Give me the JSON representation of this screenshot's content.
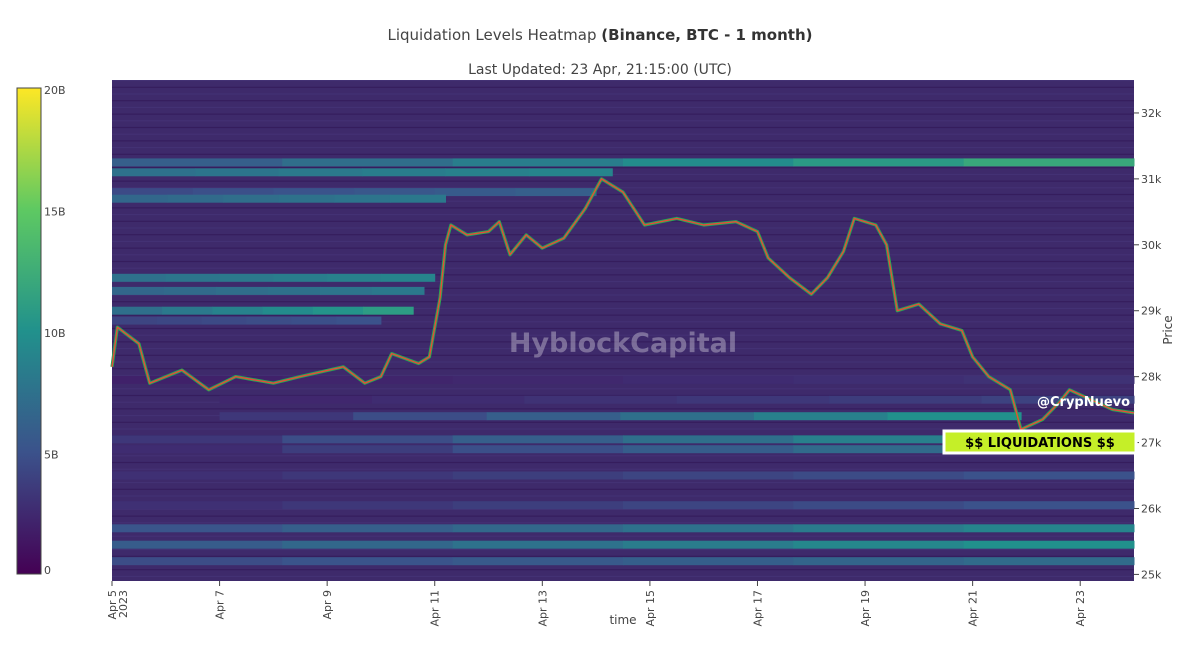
{
  "title_main": "Liquidation Levels Heatmap ",
  "title_bold": "(Binance, BTC - 1 month)",
  "subtitle": "Last Updated: 23 Apr, 21:15:00 (UTC)",
  "watermark": "HyblockCapital",
  "handle": "@CrypNuevo",
  "callout": "$$ LIQUIDATIONS $$",
  "chart_data": {
    "type": "heatmap",
    "xlabel": "time",
    "ylabel": "Price",
    "x_range": [
      "2023-04-05",
      "2023-04-24"
    ],
    "y_range": [
      24900,
      32500
    ],
    "x_ticks": [
      {
        "date": "2023-04-05",
        "label": "Apr 5",
        "label2": "2023"
      },
      {
        "date": "2023-04-07",
        "label": "Apr 7"
      },
      {
        "date": "2023-04-09",
        "label": "Apr 9"
      },
      {
        "date": "2023-04-11",
        "label": "Apr 11"
      },
      {
        "date": "2023-04-13",
        "label": "Apr 13"
      },
      {
        "date": "2023-04-15",
        "label": "Apr 15"
      },
      {
        "date": "2023-04-17",
        "label": "Apr 17"
      },
      {
        "date": "2023-04-19",
        "label": "Apr 19"
      },
      {
        "date": "2023-04-21",
        "label": "Apr 21"
      },
      {
        "date": "2023-04-23",
        "label": "Apr 23"
      }
    ],
    "y_ticks": [
      {
        "value": 25000,
        "label": "25k"
      },
      {
        "value": 26000,
        "label": "26k"
      },
      {
        "value": 27000,
        "label": "27k"
      },
      {
        "value": 28000,
        "label": "28k"
      },
      {
        "value": 29000,
        "label": "29k"
      },
      {
        "value": 30000,
        "label": "30k"
      },
      {
        "value": 31000,
        "label": "31k"
      },
      {
        "value": 32000,
        "label": "32k"
      }
    ],
    "colorbar": {
      "range": [
        0,
        20
      ],
      "unit": "B",
      "ticks": [
        {
          "value": 0,
          "label": "0"
        },
        {
          "value": 5,
          "label": "5B"
        },
        {
          "value": 10,
          "label": "10B"
        },
        {
          "value": 15,
          "label": "15B"
        },
        {
          "value": 20,
          "label": "20B"
        }
      ],
      "colors": [
        "#440154",
        "#3b528b",
        "#21918c",
        "#5ec962",
        "#fde725"
      ]
    },
    "bands": [
      {
        "price": 31250,
        "level": 12,
        "start": "2023-04-05",
        "end": "2023-04-24",
        "growth": 0.6
      },
      {
        "price": 31100,
        "level": 9,
        "start": "2023-04-05",
        "end": "2023-04-14.3",
        "growth": 0.2
      },
      {
        "price": 30800,
        "level": 6,
        "start": "2023-04-05",
        "end": "2023-04-14",
        "growth": 0.3
      },
      {
        "price": 30700,
        "level": 8,
        "start": "2023-04-05",
        "end": "2023-04-11.2",
        "growth": 0.2
      },
      {
        "price": 29500,
        "level": 9,
        "start": "2023-04-05",
        "end": "2023-04-11",
        "growth": 0.2
      },
      {
        "price": 29300,
        "level": 8,
        "start": "2023-04-05",
        "end": "2023-04-10.8",
        "growth": 0.2
      },
      {
        "price": 29000,
        "level": 11,
        "start": "2023-04-05",
        "end": "2023-04-10.6",
        "growth": 0.4
      },
      {
        "price": 28850,
        "level": 5,
        "start": "2023-04-05",
        "end": "2023-04-10",
        "growth": 0.2
      },
      {
        "price": 27950,
        "level": 3,
        "start": "2023-04-05",
        "end": "2023-04-24",
        "growth": 0.4
      },
      {
        "price": 27650,
        "level": 4,
        "start": "2023-04-07",
        "end": "2023-04-24",
        "growth": 0.5
      },
      {
        "price": 27400,
        "level": 10,
        "start": "2023-04-07",
        "end": "2023-04-21.9",
        "growth": 0.8
      },
      {
        "price": 27050,
        "level": 10,
        "start": "2023-04-05",
        "end": "2023-04-24",
        "growth": 0.8
      },
      {
        "price": 26900,
        "level": 8,
        "start": "2023-04-05",
        "end": "2023-04-24",
        "growth": 0.8
      },
      {
        "price": 26500,
        "level": 5,
        "start": "2023-04-05",
        "end": "2023-04-24",
        "growth": 0.5
      },
      {
        "price": 26050,
        "level": 5,
        "start": "2023-04-05",
        "end": "2023-04-24",
        "growth": 0.5
      },
      {
        "price": 25700,
        "level": 9,
        "start": "2023-04-05",
        "end": "2023-04-24",
        "growth": 0.5
      },
      {
        "price": 25450,
        "level": 10,
        "start": "2023-04-05",
        "end": "2023-04-24",
        "growth": 0.5
      },
      {
        "price": 25200,
        "level": 7,
        "start": "2023-04-05",
        "end": "2023-04-24",
        "growth": 0.4
      }
    ],
    "price_path": [
      [
        "2023-04-05",
        28150
      ],
      [
        "2023-04-05.1",
        28750
      ],
      [
        "2023-04-05.5",
        28500
      ],
      [
        "2023-04-05.7",
        27900
      ],
      [
        "2023-04-06.3",
        28100
      ],
      [
        "2023-04-06.8",
        27800
      ],
      [
        "2023-04-07.3",
        28000
      ],
      [
        "2023-04-08",
        27900
      ],
      [
        "2023-04-08.5",
        28000
      ],
      [
        "2023-04-09.3",
        28150
      ],
      [
        "2023-04-09.7",
        27900
      ],
      [
        "2023-04-10",
        28000
      ],
      [
        "2023-04-10.2",
        28350
      ],
      [
        "2023-04-10.7",
        28200
      ],
      [
        "2023-04-10.9",
        28300
      ],
      [
        "2023-04-11.1",
        29200
      ],
      [
        "2023-04-11.2",
        30000
      ],
      [
        "2023-04-11.3",
        30300
      ],
      [
        "2023-04-11.6",
        30150
      ],
      [
        "2023-04-12",
        30200
      ],
      [
        "2023-04-12.2",
        30350
      ],
      [
        "2023-04-12.4",
        29850
      ],
      [
        "2023-04-12.7",
        30150
      ],
      [
        "2023-04-13",
        29950
      ],
      [
        "2023-04-13.4",
        30100
      ],
      [
        "2023-04-13.8",
        30550
      ],
      [
        "2023-04-14.1",
        31000
      ],
      [
        "2023-04-14.5",
        30800
      ],
      [
        "2023-04-14.9",
        30300
      ],
      [
        "2023-04-15.5",
        30400
      ],
      [
        "2023-04-16",
        30300
      ],
      [
        "2023-04-16.6",
        30350
      ],
      [
        "2023-04-17",
        30200
      ],
      [
        "2023-04-17.2",
        29800
      ],
      [
        "2023-04-17.6",
        29500
      ],
      [
        "2023-04-18",
        29250
      ],
      [
        "2023-04-18.3",
        29500
      ],
      [
        "2023-04-18.6",
        29900
      ],
      [
        "2023-04-18.8",
        30400
      ],
      [
        "2023-04-19.2",
        30300
      ],
      [
        "2023-04-19.4",
        30000
      ],
      [
        "2023-04-19.6",
        29000
      ],
      [
        "2023-04-20",
        29100
      ],
      [
        "2023-04-20.4",
        28800
      ],
      [
        "2023-04-20.8",
        28700
      ],
      [
        "2023-04-21",
        28300
      ],
      [
        "2023-04-21.3",
        28000
      ],
      [
        "2023-04-21.7",
        27800
      ],
      [
        "2023-04-21.9",
        27200
      ],
      [
        "2023-04-22.3",
        27350
      ],
      [
        "2023-04-22.6",
        27600
      ],
      [
        "2023-04-22.8",
        27800
      ],
      [
        "2023-04-23.2",
        27650
      ],
      [
        "2023-04-23.6",
        27500
      ],
      [
        "2023-04-24",
        27450
      ]
    ]
  }
}
